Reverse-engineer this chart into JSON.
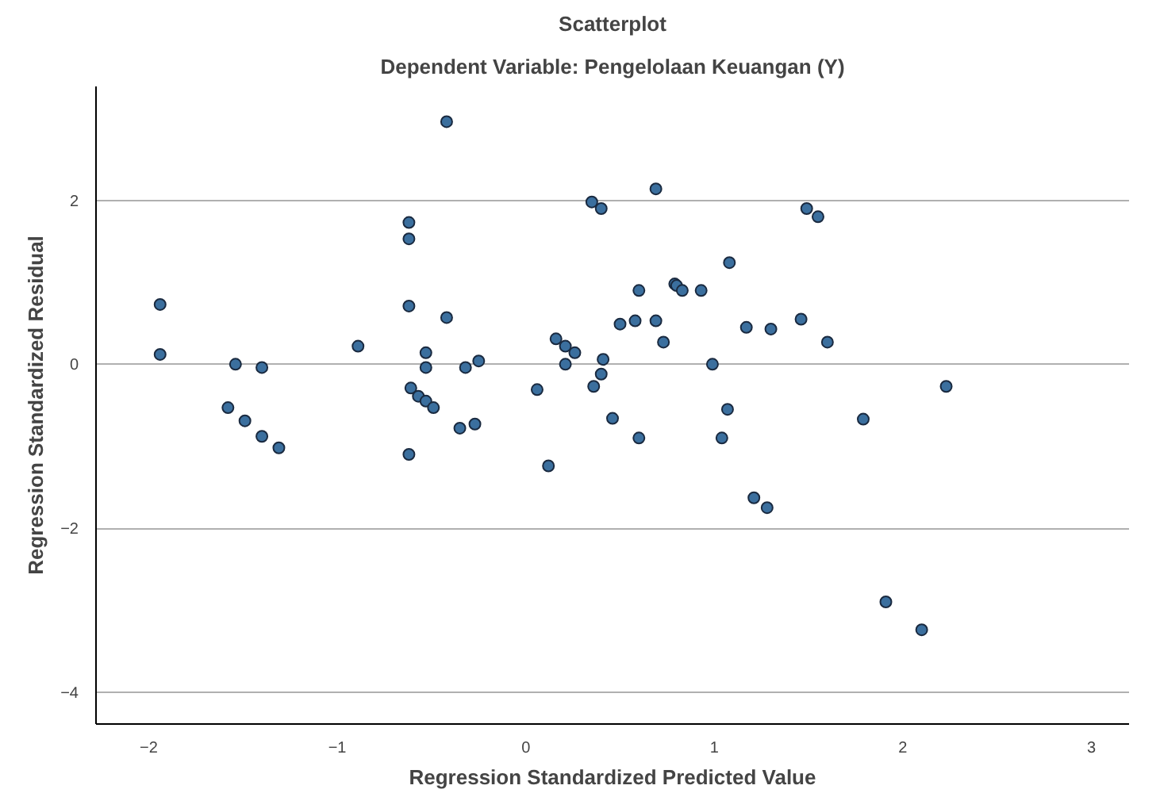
{
  "chart_data": {
    "type": "scatter",
    "title": "Scatterplot",
    "subtitle": "Dependent Variable: Pengelolaan Keuangan (Y)",
    "xlabel": "Regression Standardized Predicted Value",
    "ylabel": "Regression Standardized Residual",
    "xlim": [
      -2.28,
      3.2
    ],
    "ylim": [
      -4.39,
      3.39
    ],
    "xticks": [
      -2,
      -1,
      0,
      1,
      2,
      3
    ],
    "yticks": [
      -4,
      -2,
      0,
      2
    ],
    "grid": "y",
    "marker": "circle",
    "series": [
      {
        "color": "#3b6f9e",
        "x": [
          -1.94,
          -1.94,
          -1.54,
          -1.58,
          -1.49,
          -1.4,
          -1.4,
          -1.31,
          -0.89,
          -0.62,
          -0.62,
          -0.62,
          -0.61,
          -0.57,
          -0.53,
          -0.49,
          -0.53,
          -0.53,
          -0.62,
          -0.42,
          -0.42,
          -0.32,
          -0.25,
          -0.35,
          -0.27,
          0.06,
          0.12,
          0.16,
          0.21,
          0.26,
          0.21,
          0.35,
          0.4,
          0.36,
          0.4,
          0.41,
          0.46,
          0.69,
          1.49,
          1.55,
          1.08,
          0.6,
          0.79,
          0.8,
          0.83,
          0.93,
          0.5,
          0.58,
          0.69,
          0.73,
          1.17,
          1.3,
          1.46,
          1.6,
          0.99,
          2.23,
          0.6,
          1.07,
          1.04,
          1.79,
          1.21,
          1.28,
          1.91,
          2.1
        ],
        "values": [
          0.73,
          0.12,
          0.0,
          -0.53,
          -0.69,
          -0.04,
          -0.88,
          -1.02,
          0.22,
          1.73,
          1.53,
          0.71,
          -0.29,
          -0.39,
          -0.45,
          -0.53,
          0.14,
          -0.04,
          -1.1,
          2.96,
          0.57,
          -0.04,
          0.04,
          -0.78,
          -0.73,
          -0.31,
          -1.24,
          0.31,
          0.22,
          0.14,
          0.0,
          1.98,
          1.9,
          -0.27,
          -0.12,
          0.06,
          -0.66,
          2.14,
          1.9,
          1.8,
          1.24,
          0.9,
          0.98,
          0.96,
          0.9,
          0.9,
          0.49,
          0.53,
          0.53,
          0.27,
          0.45,
          0.43,
          0.55,
          0.27,
          0.0,
          -0.27,
          -0.9,
          -0.55,
          -0.9,
          -0.67,
          -1.63,
          -1.75,
          -2.9,
          -3.24
        ]
      }
    ]
  }
}
